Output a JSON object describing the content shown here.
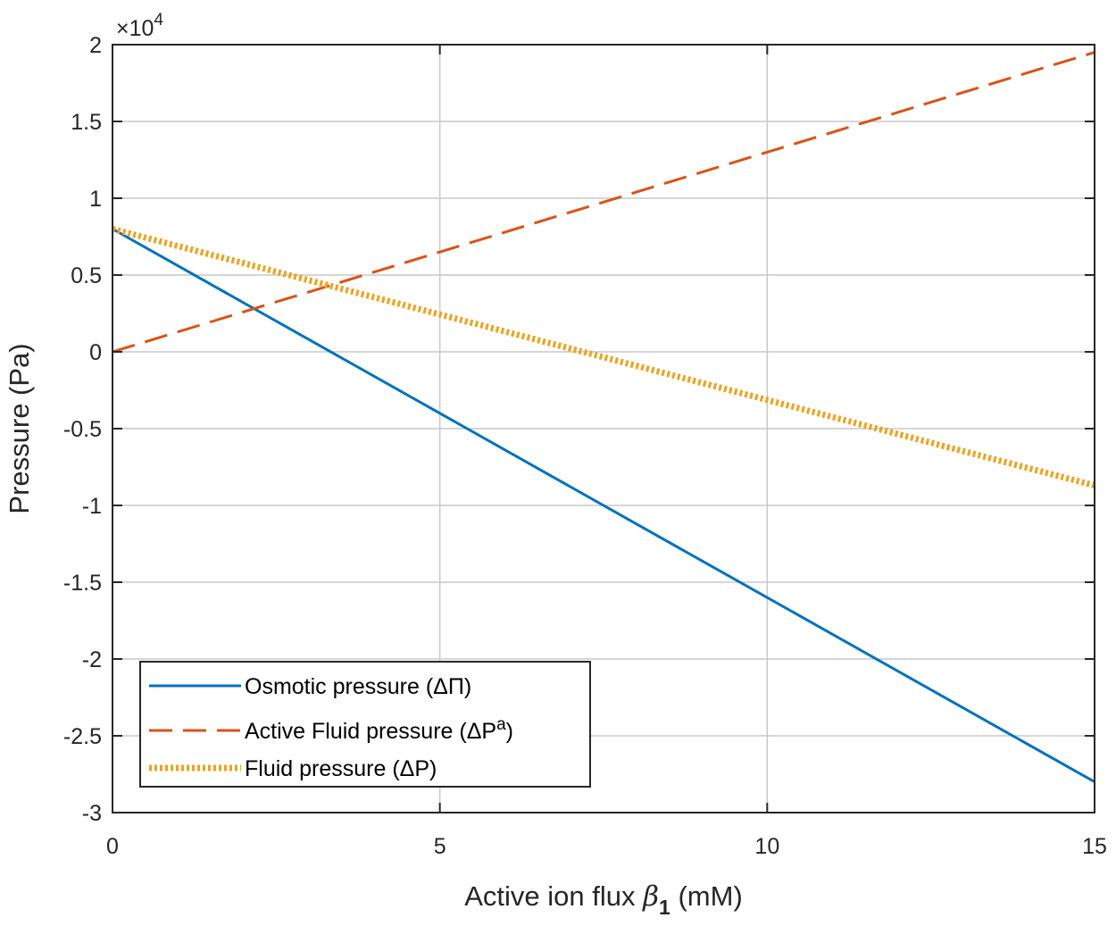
{
  "chart_data": {
    "type": "line",
    "xlabel": "Active ion flux",
    "xlabel_symbol": "β",
    "xlabel_subscript": "1",
    "xlabel_unit": "(mM)",
    "ylabel": "Pressure (Pa)",
    "y_exponent_prefix": "×10",
    "y_exponent_power": "4",
    "xlim": [
      0,
      15
    ],
    "ylim": [
      -30000,
      20000
    ],
    "xticks": [
      0,
      5,
      10,
      15
    ],
    "xtick_labels": [
      "0",
      "5",
      "10",
      "15"
    ],
    "yticks": [
      -30000,
      -25000,
      -20000,
      -15000,
      -10000,
      -5000,
      0,
      5000,
      10000,
      15000,
      20000
    ],
    "ytick_labels": [
      "-3",
      "-2.5",
      "-2",
      "-1.5",
      "-1",
      "-0.5",
      "0",
      "0.5",
      "1",
      "1.5",
      "2"
    ],
    "grid": true,
    "legend_position": "bottom-left",
    "series": [
      {
        "name": "Osmotic pressure (ΔΠ)",
        "legend_main": "Osmotic pressure (ΔΠ)",
        "legend_sup": "",
        "legend_tail": "",
        "style": "solid",
        "color": "#0072BD",
        "x": [
          0,
          15
        ],
        "y": [
          8000,
          -28000
        ]
      },
      {
        "name": "Active Fluid pressure (ΔPa)",
        "legend_main": "Active Fluid pressure (ΔP",
        "legend_sup": "a",
        "legend_tail": ")",
        "style": "dashed",
        "color": "#D95319",
        "x": [
          0,
          15
        ],
        "y": [
          0,
          19500
        ]
      },
      {
        "name": "Fluid pressure (ΔP)",
        "legend_main": "Fluid pressure (ΔP)",
        "legend_sup": "",
        "legend_tail": "",
        "style": "dotted",
        "color": "#EDA31E",
        "x": [
          0,
          15
        ],
        "y": [
          8000,
          -8700
        ]
      }
    ]
  }
}
